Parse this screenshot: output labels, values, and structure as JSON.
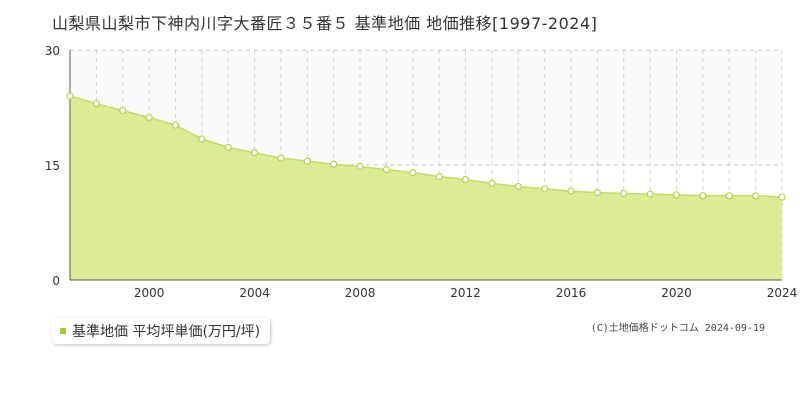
{
  "title": "山梨県山梨市下神内川字大番匠３５番５ 基準地価 地価推移[1997-2024]",
  "legend": {
    "label": "基準地価 平均坪単価(万円/坪)"
  },
  "credit": "(C)土地価格ドットコム 2024-09-19",
  "colors": {
    "area": "#dcec94",
    "line": "#c2dc64",
    "point_fill": "#ffffff",
    "point_stroke": "#b5d14e",
    "marker": "#aacc33"
  },
  "chart_data": {
    "type": "area",
    "x": [
      1997,
      1998,
      1999,
      2000,
      2001,
      2002,
      2003,
      2004,
      2005,
      2006,
      2007,
      2008,
      2009,
      2010,
      2011,
      2012,
      2013,
      2014,
      2015,
      2016,
      2017,
      2018,
      2019,
      2020,
      2021,
      2022,
      2023,
      2024
    ],
    "series": [
      {
        "name": "基準地価 平均坪単価(万円/坪)",
        "values": [
          24.0,
          23.0,
          22.1,
          21.2,
          20.2,
          18.4,
          17.3,
          16.6,
          15.9,
          15.5,
          15.1,
          14.8,
          14.4,
          14.0,
          13.5,
          13.1,
          12.6,
          12.2,
          11.9,
          11.6,
          11.4,
          11.3,
          11.2,
          11.1,
          11.0,
          11.0,
          11.0,
          10.8
        ]
      }
    ],
    "xlim": [
      1997,
      2024
    ],
    "ylim": [
      0,
      30
    ],
    "x_ticks": [
      "2000",
      "2004",
      "2008",
      "2012",
      "2016",
      "2020",
      "2024"
    ],
    "y_ticks": [
      "0",
      "15",
      "30"
    ],
    "grid": true,
    "legend_position": "bottom-left"
  }
}
